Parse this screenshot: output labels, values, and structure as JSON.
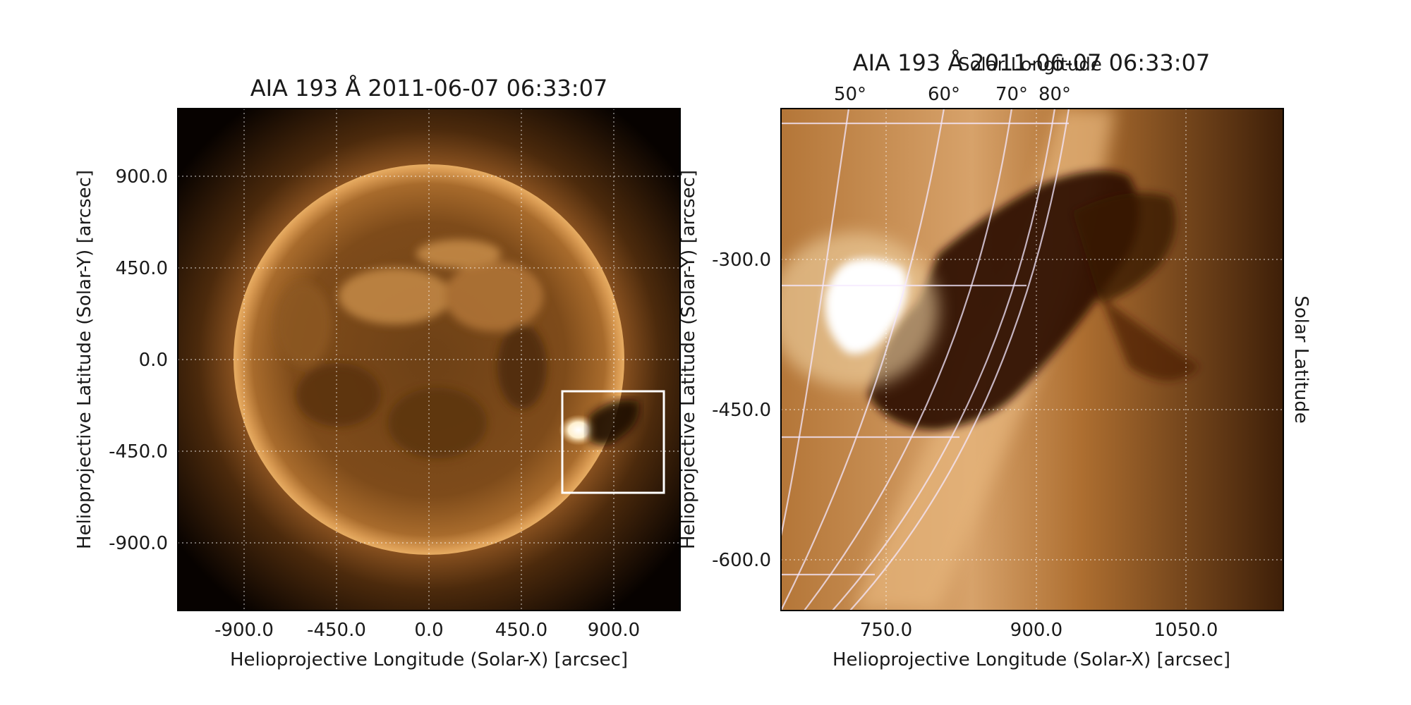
{
  "panels": {
    "left": {
      "title": "AIA 193 Å 2011-06-07 06:33:07",
      "xlabel": "Helioprojective Longitude (Solar-X) [arcsec]",
      "ylabel": "Helioprojective Latitude (Solar-Y) [arcsec]",
      "xticks": [
        "-900.0",
        "-450.0",
        "0.0",
        "450.0",
        "900.0"
      ],
      "yticks": [
        "900.0",
        "450.0",
        "0.0",
        "-450.0",
        "-900.0"
      ]
    },
    "right": {
      "title": "AIA 193 Å 2011-06-07 06:33:07",
      "top_axis_label": "Solar Longitude",
      "right_axis_label": "Solar Latitude",
      "xlabel": "Helioprojective Longitude (Solar-X) [arcsec]",
      "ylabel": "Helioprojective Latitude (Solar-Y) [arcsec]",
      "xticks": [
        "750.0",
        "900.0",
        "1050.0"
      ],
      "yticks": [
        "-300.0",
        "-450.0",
        "-600.0"
      ],
      "longitude_ticks": [
        "50°",
        "60°",
        "70°",
        "80°"
      ]
    }
  },
  "colors": {
    "colormap": "sdoaia193",
    "disk_center": "#6a3e14",
    "disk_limb": "#e2a65c",
    "highlight": "#fff3d6",
    "filament": "#1c0b02",
    "background": "#000000",
    "overlay": "#ffffff"
  }
}
